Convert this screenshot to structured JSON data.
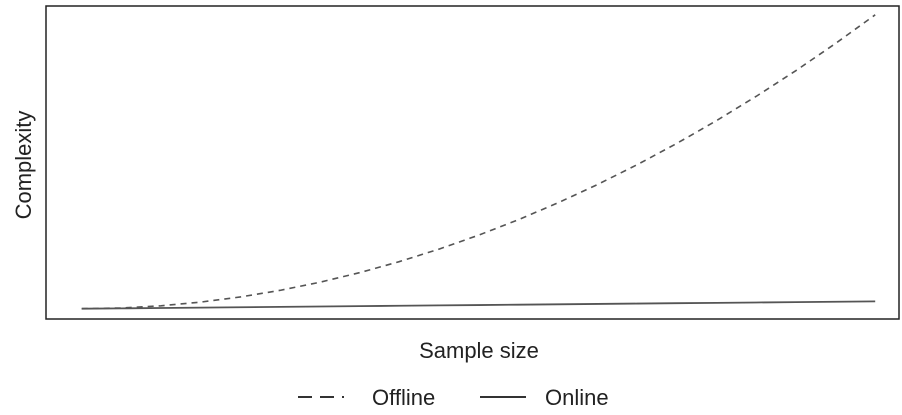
{
  "chart_data": {
    "type": "line",
    "title": "",
    "xlabel": "Sample size",
    "ylabel": "Complexity",
    "x": [
      0,
      0.05,
      0.1,
      0.15,
      0.2,
      0.25,
      0.3,
      0.35,
      0.4,
      0.45,
      0.5,
      0.55,
      0.6,
      0.65,
      0.7,
      0.75,
      0.8,
      0.85,
      0.9,
      0.95,
      1
    ],
    "series": [
      {
        "name": "Offline",
        "line_style": "dashed",
        "values": [
          0.0,
          0.0025,
          0.01,
          0.0225,
          0.04,
          0.0625,
          0.09,
          0.1225,
          0.16,
          0.2025,
          0.25,
          0.3025,
          0.36,
          0.4225,
          0.49,
          0.5625,
          0.64,
          0.7225,
          0.81,
          0.9025,
          1.0
        ]
      },
      {
        "name": "Online",
        "line_style": "solid",
        "values": [
          0.0,
          0.00125,
          0.0025,
          0.00375,
          0.005,
          0.00625,
          0.0075,
          0.00875,
          0.01,
          0.01125,
          0.0125,
          0.01375,
          0.015,
          0.01625,
          0.0175,
          0.01875,
          0.02,
          0.02125,
          0.0225,
          0.02375,
          0.025
        ]
      }
    ],
    "xlim": [
      -0.045,
      1.03
    ],
    "ylim": [
      -0.035,
      1.03
    ],
    "grid": false,
    "ticks": false,
    "legend_position": "bottom-center",
    "colors": {
      "Offline": "#555555",
      "Online": "#555555",
      "axis": "#222222"
    }
  }
}
